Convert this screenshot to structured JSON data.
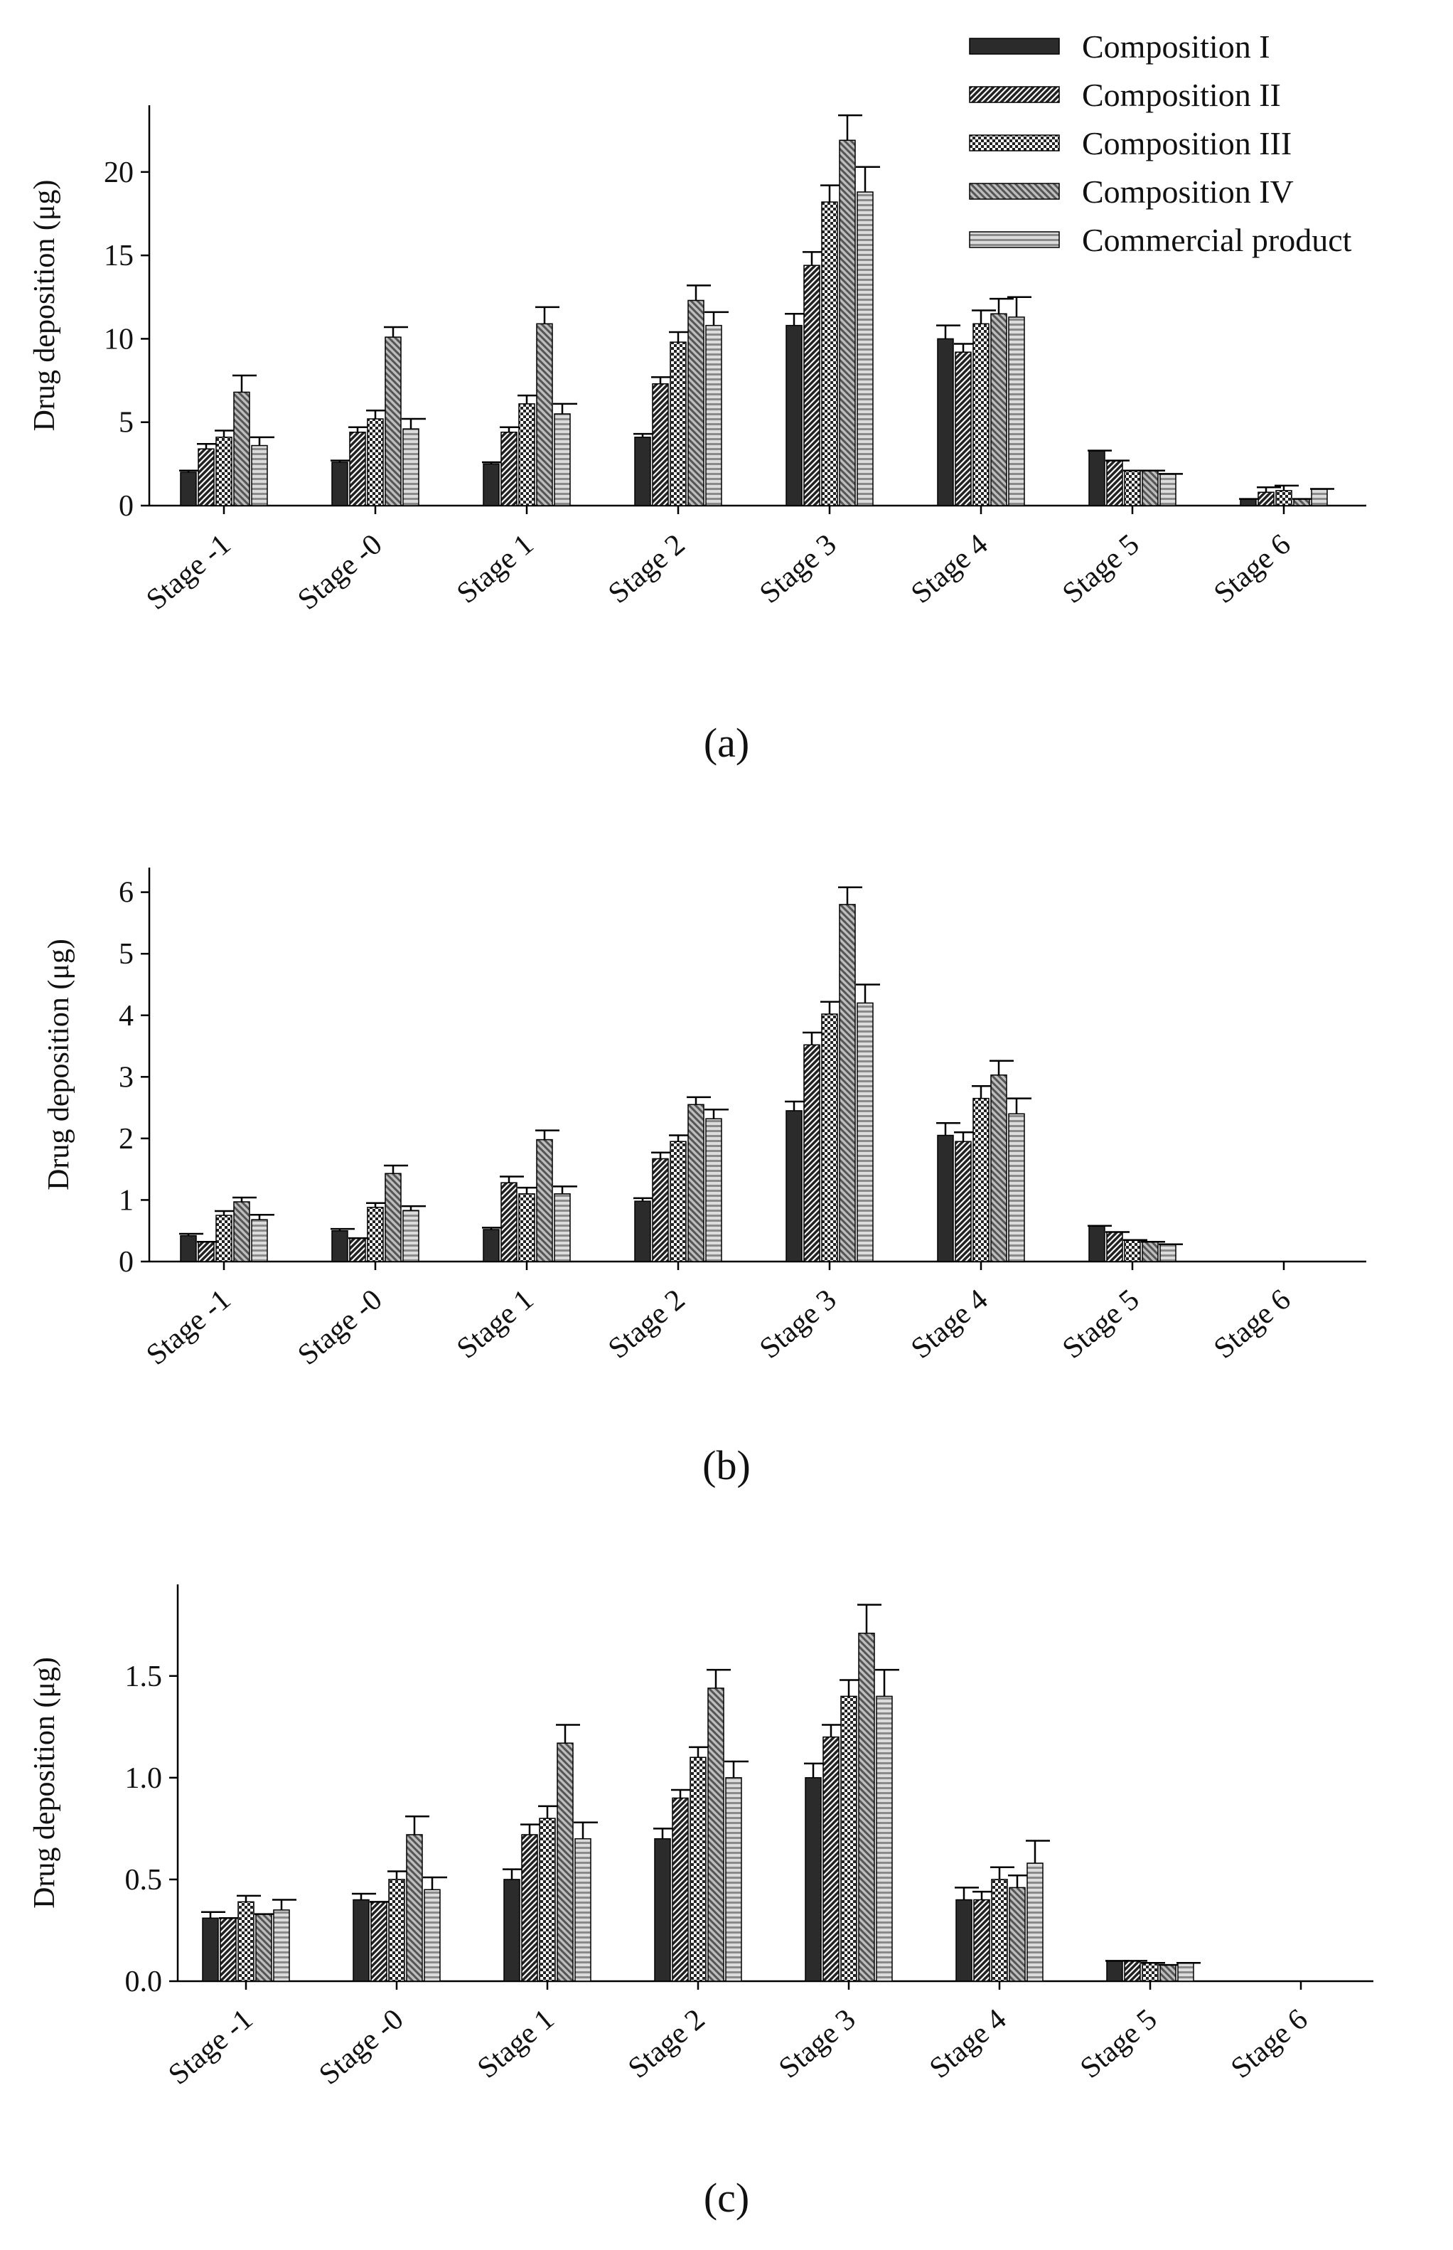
{
  "figure": {
    "panel_labels": [
      "(a)",
      "(b)",
      "(c)"
    ]
  },
  "legend": {
    "entries": [
      "Composition I",
      "Composition II",
      "Composition III",
      "Composition IV",
      "Commercial product"
    ]
  },
  "series_styles": [
    {
      "name": "Composition I",
      "pattern": "solid-dark",
      "color": "#2b2b2b"
    },
    {
      "name": "Composition II",
      "pattern": "diag-dense",
      "color": "#3a3a3a"
    },
    {
      "name": "Composition III",
      "pattern": "checker",
      "color": "#333333"
    },
    {
      "name": "Composition IV",
      "pattern": "diag-gray",
      "color": "#777777"
    },
    {
      "name": "Commercial product",
      "pattern": "horiz-lines",
      "color": "#9a9a9a"
    }
  ],
  "chart_data": [
    {
      "type": "bar",
      "panel": "(a)",
      "ylabel": "Drug deposition (μg)",
      "ylim": [
        0,
        24
      ],
      "yticks": [
        0,
        5,
        10,
        15,
        20
      ],
      "ytick_labels": [
        "0",
        "5",
        "10",
        "15",
        "20"
      ],
      "categories": [
        "Stage -1",
        "Stage -0",
        "Stage 1",
        "Stage 2",
        "Stage 3",
        "Stage 4",
        "Stage 5",
        "Stage 6"
      ],
      "series": [
        {
          "name": "Composition I",
          "values": [
            2.0,
            2.6,
            2.5,
            4.1,
            10.8,
            10.0,
            3.3,
            0.4
          ],
          "errors": [
            0.1,
            0.1,
            0.1,
            0.2,
            0.7,
            0.8,
            0.0,
            0.0
          ]
        },
        {
          "name": "Composition II",
          "values": [
            3.4,
            4.4,
            4.4,
            7.3,
            14.4,
            9.2,
            2.7,
            0.8
          ],
          "errors": [
            0.3,
            0.3,
            0.3,
            0.4,
            0.8,
            0.5,
            0.0,
            0.3
          ]
        },
        {
          "name": "Composition III",
          "values": [
            4.1,
            5.2,
            6.1,
            9.8,
            18.2,
            10.9,
            2.1,
            0.9
          ],
          "errors": [
            0.4,
            0.5,
            0.5,
            0.6,
            1.0,
            0.8,
            0.0,
            0.3
          ]
        },
        {
          "name": "Composition IV",
          "values": [
            6.8,
            10.1,
            10.9,
            12.3,
            21.9,
            11.5,
            2.1,
            0.4
          ],
          "errors": [
            1.0,
            0.6,
            1.0,
            0.9,
            1.5,
            0.9,
            0.0,
            0.0
          ]
        },
        {
          "name": "Commercial product",
          "values": [
            3.6,
            4.6,
            5.5,
            10.8,
            18.8,
            11.3,
            1.9,
            1.0
          ],
          "errors": [
            0.5,
            0.6,
            0.6,
            0.8,
            1.5,
            1.2,
            0.0,
            0.0
          ]
        }
      ]
    },
    {
      "type": "bar",
      "panel": "(b)",
      "ylabel": "Drug deposition (μg)",
      "ylim": [
        0,
        6.4
      ],
      "yticks": [
        0,
        1,
        2,
        3,
        4,
        5,
        6
      ],
      "ytick_labels": [
        "0",
        "1",
        "2",
        "3",
        "4",
        "5",
        "6"
      ],
      "categories": [
        "Stage -1",
        "Stage -0",
        "Stage 1",
        "Stage 2",
        "Stage 3",
        "Stage 4",
        "Stage 5",
        "Stage 6"
      ],
      "series": [
        {
          "name": "Composition I",
          "values": [
            0.42,
            0.5,
            0.52,
            0.98,
            2.45,
            2.05,
            0.58,
            0.0
          ],
          "errors": [
            0.03,
            0.03,
            0.03,
            0.05,
            0.15,
            0.2,
            0.0,
            0.0
          ]
        },
        {
          "name": "Composition II",
          "values": [
            0.32,
            0.38,
            1.28,
            1.67,
            3.52,
            1.95,
            0.48,
            0.0
          ],
          "errors": [
            0.0,
            0.0,
            0.1,
            0.1,
            0.2,
            0.15,
            0.0,
            0.0
          ]
        },
        {
          "name": "Composition III",
          "values": [
            0.75,
            0.88,
            1.1,
            1.95,
            4.02,
            2.65,
            0.35,
            0.0
          ],
          "errors": [
            0.07,
            0.07,
            0.1,
            0.1,
            0.2,
            0.2,
            0.0,
            0.0
          ]
        },
        {
          "name": "Composition IV",
          "values": [
            0.97,
            1.43,
            1.98,
            2.55,
            5.8,
            3.03,
            0.32,
            0.0
          ],
          "errors": [
            0.07,
            0.13,
            0.15,
            0.12,
            0.28,
            0.23,
            0.0,
            0.0
          ]
        },
        {
          "name": "Commercial product",
          "values": [
            0.68,
            0.83,
            1.1,
            2.32,
            4.2,
            2.4,
            0.28,
            0.0
          ],
          "errors": [
            0.08,
            0.07,
            0.12,
            0.15,
            0.3,
            0.25,
            0.0,
            0.0
          ]
        }
      ]
    },
    {
      "type": "bar",
      "panel": "(c)",
      "ylabel": "Drug deposition (μg)",
      "ylim": [
        0,
        1.95
      ],
      "yticks": [
        0,
        0.5,
        1.0,
        1.5
      ],
      "ytick_labels": [
        "0.0",
        "0.5",
        "1.0",
        "1.5"
      ],
      "categories": [
        "Stage -1",
        "Stage -0",
        "Stage 1",
        "Stage 2",
        "Stage 3",
        "Stage 4",
        "Stage 5",
        "Stage 6"
      ],
      "series": [
        {
          "name": "Composition I",
          "values": [
            0.31,
            0.4,
            0.5,
            0.7,
            1.0,
            0.4,
            0.1,
            0.0
          ],
          "errors": [
            0.03,
            0.03,
            0.05,
            0.05,
            0.07,
            0.06,
            0.0,
            0.0
          ]
        },
        {
          "name": "Composition II",
          "values": [
            0.31,
            0.39,
            0.72,
            0.9,
            1.2,
            0.4,
            0.1,
            0.0
          ],
          "errors": [
            0.0,
            0.0,
            0.05,
            0.04,
            0.06,
            0.04,
            0.0,
            0.0
          ]
        },
        {
          "name": "Composition III",
          "values": [
            0.39,
            0.5,
            0.8,
            1.1,
            1.4,
            0.5,
            0.09,
            0.0
          ],
          "errors": [
            0.03,
            0.04,
            0.06,
            0.05,
            0.08,
            0.06,
            0.0,
            0.0
          ]
        },
        {
          "name": "Composition IV",
          "values": [
            0.33,
            0.72,
            1.17,
            1.44,
            1.71,
            0.46,
            0.08,
            0.0
          ],
          "errors": [
            0.0,
            0.09,
            0.09,
            0.09,
            0.14,
            0.06,
            0.0,
            0.0
          ]
        },
        {
          "name": "Commercial product",
          "values": [
            0.35,
            0.45,
            0.7,
            1.0,
            1.4,
            0.58,
            0.09,
            0.0
          ],
          "errors": [
            0.05,
            0.06,
            0.08,
            0.08,
            0.13,
            0.11,
            0.0,
            0.0
          ]
        }
      ]
    }
  ]
}
